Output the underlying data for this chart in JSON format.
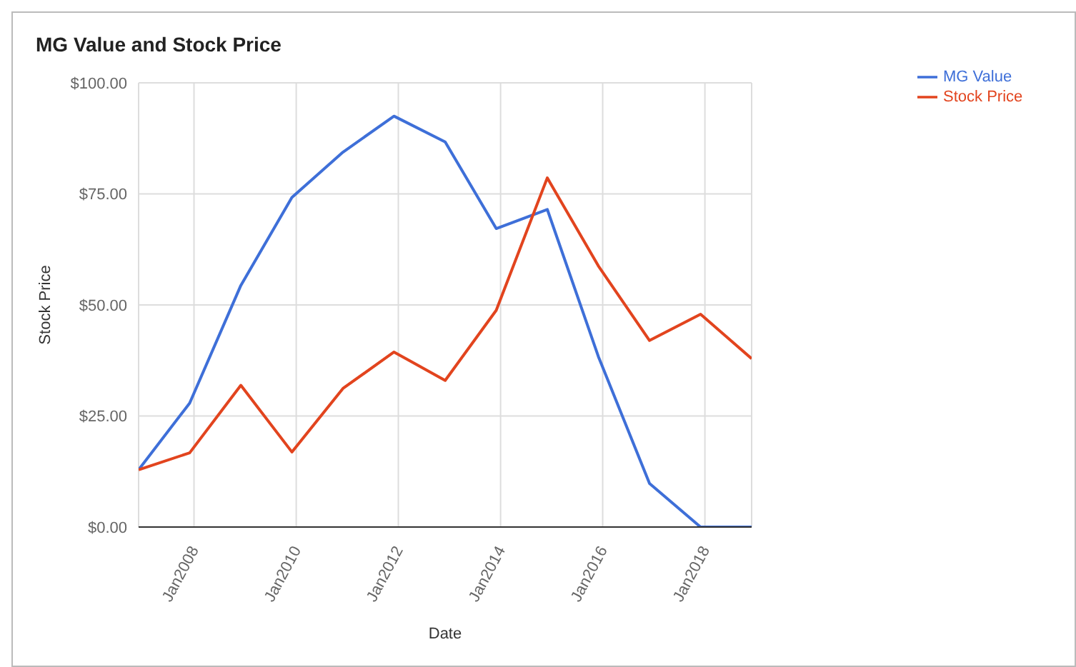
{
  "chart_data": {
    "type": "line",
    "title": "MG Value and Stock Price",
    "xlabel": "Date",
    "ylabel": "Stock Price",
    "x": [
      "2006-12",
      "2007-12",
      "2008-12",
      "2009-12",
      "2010-12",
      "2011-12",
      "2012-12",
      "2013-12",
      "2014-12",
      "2015-12",
      "2016-12",
      "2017-12",
      "2018-12"
    ],
    "series": [
      {
        "name": "MG Value",
        "color": "#3e6fd8",
        "values": [
          12.9,
          27.9,
          54.4,
          74.2,
          84.4,
          92.5,
          86.7,
          67.2,
          71.5,
          38.4,
          9.8,
          0,
          0
        ]
      },
      {
        "name": "Stock Price",
        "color": "#e2441e",
        "values": [
          12.9,
          16.7,
          31.9,
          16.9,
          31.2,
          39.4,
          33.0,
          48.8,
          78.6,
          58.8,
          42.0,
          47.9,
          37.9
        ]
      }
    ],
    "xlim": [
      "2006-12",
      "2018-12"
    ],
    "xticks": [
      {
        "value": "2008-01",
        "label": "Jan2008"
      },
      {
        "value": "2010-01",
        "label": "Jan2010"
      },
      {
        "value": "2012-01",
        "label": "Jan2012"
      },
      {
        "value": "2014-01",
        "label": "Jan2014"
      },
      {
        "value": "2016-01",
        "label": "Jan2016"
      },
      {
        "value": "2018-01",
        "label": "Jan2018"
      }
    ],
    "ylim": [
      0,
      100
    ],
    "yticks": [
      {
        "value": 0,
        "label": "$0.00"
      },
      {
        "value": 25,
        "label": "$25.00"
      },
      {
        "value": 50,
        "label": "$50.00"
      },
      {
        "value": 75,
        "label": "$75.00"
      },
      {
        "value": 100,
        "label": "$100.00"
      }
    ],
    "grid": true,
    "legend": "top right",
    "marker": "none",
    "line_style": "solid"
  }
}
